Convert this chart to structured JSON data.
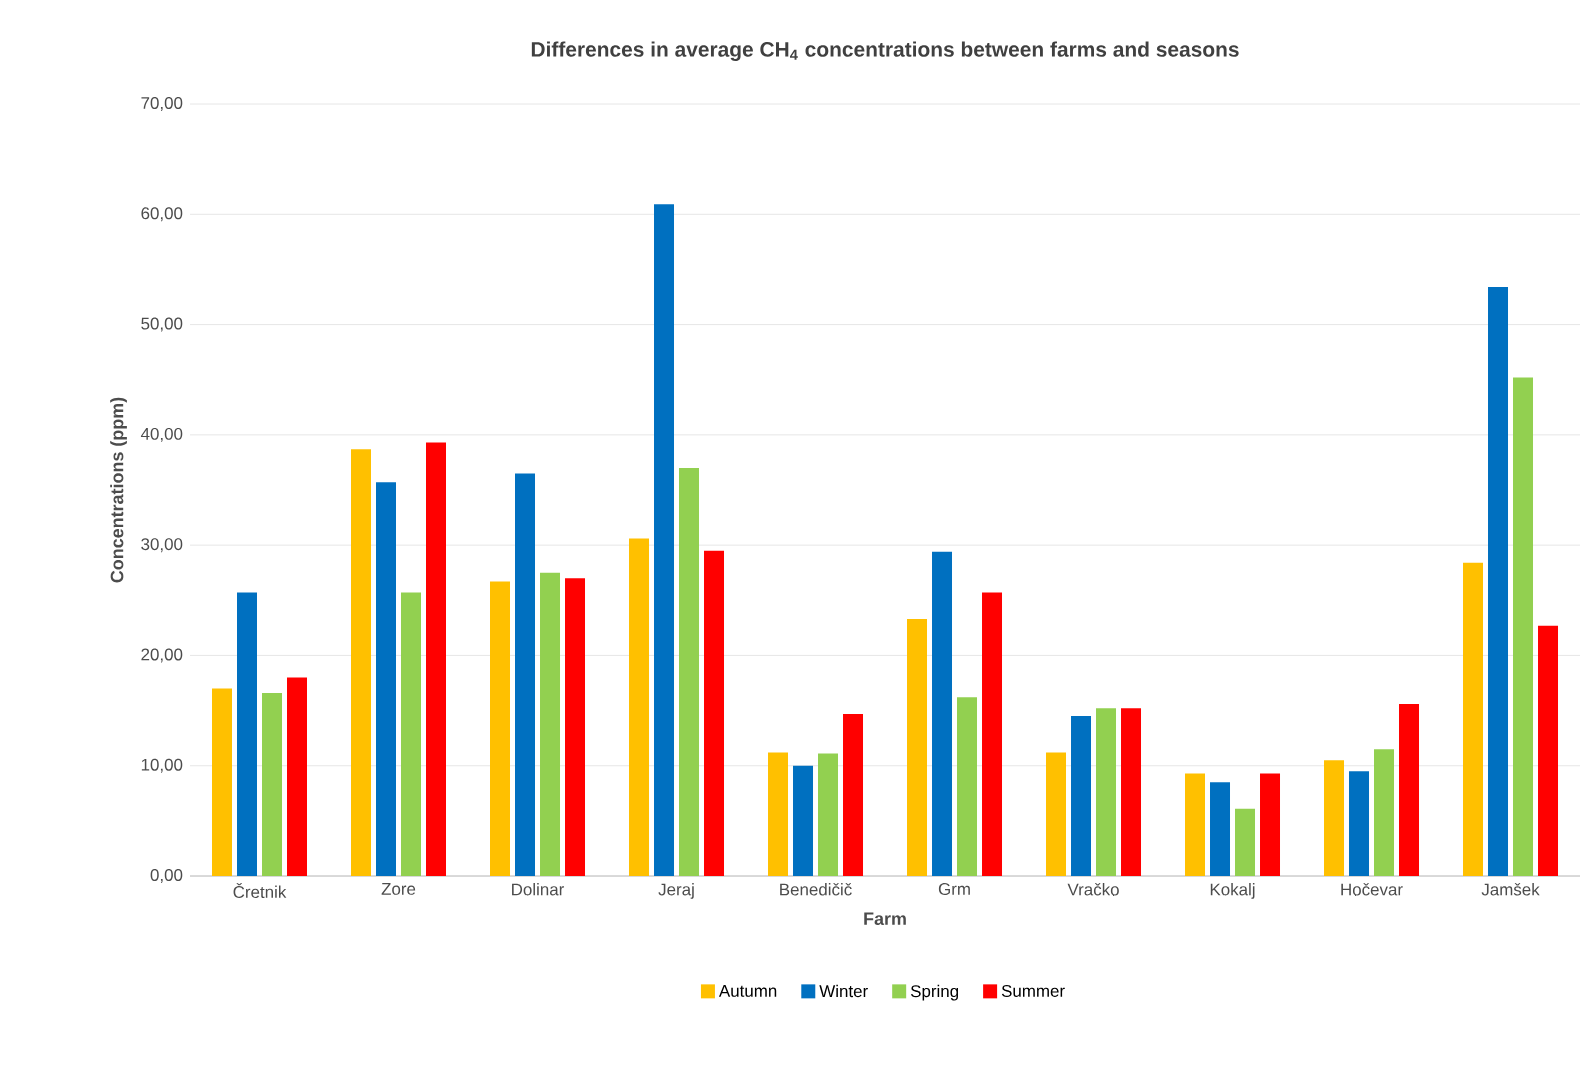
{
  "chart_data": {
    "type": "bar",
    "title": "Differences in average CH$_{4}$ concentrations between farms and seasons",
    "xlabel": "Farm",
    "ylabel": "Concentrations (ppm)",
    "categories": [
      "Čretnik",
      "Zore",
      "Dolinar",
      "Jeraj",
      "Benedičič",
      "Grm",
      "Vračko",
      "Kokalj",
      "Hočevar",
      "Jamšek"
    ],
    "series": [
      {
        "name": "Autumn",
        "color": "#ffc000",
        "values": [
          17.0,
          38.7,
          26.7,
          30.6,
          11.2,
          23.3,
          11.2,
          9.3,
          10.5,
          28.4
        ]
      },
      {
        "name": "Winter",
        "color": "#0070c0",
        "values": [
          25.7,
          35.7,
          36.5,
          60.9,
          10.0,
          29.4,
          14.5,
          8.5,
          9.5,
          53.4
        ]
      },
      {
        "name": "Spring",
        "color": "#92d050",
        "values": [
          16.6,
          25.7,
          27.5,
          37.0,
          11.1,
          16.2,
          15.2,
          6.1,
          11.5,
          45.2
        ]
      },
      {
        "name": "Summer",
        "color": "#ff0000",
        "values": [
          18.0,
          39.3,
          27.0,
          29.5,
          14.7,
          25.7,
          15.2,
          9.3,
          15.6,
          22.7
        ]
      }
    ],
    "ylim": [
      0,
      70
    ],
    "yticks": [
      {
        "value": 0,
        "label": "0,00"
      },
      {
        "value": 10,
        "label": "10,00"
      },
      {
        "value": 20,
        "label": "20,00"
      },
      {
        "value": 30,
        "label": "30,00"
      },
      {
        "value": 40,
        "label": "40,00"
      },
      {
        "value": 50,
        "label": "50,00"
      },
      {
        "value": 60,
        "label": "60,00"
      },
      {
        "value": 70,
        "label": "70,00"
      }
    ],
    "grid": "y",
    "legend": "bottom"
  }
}
